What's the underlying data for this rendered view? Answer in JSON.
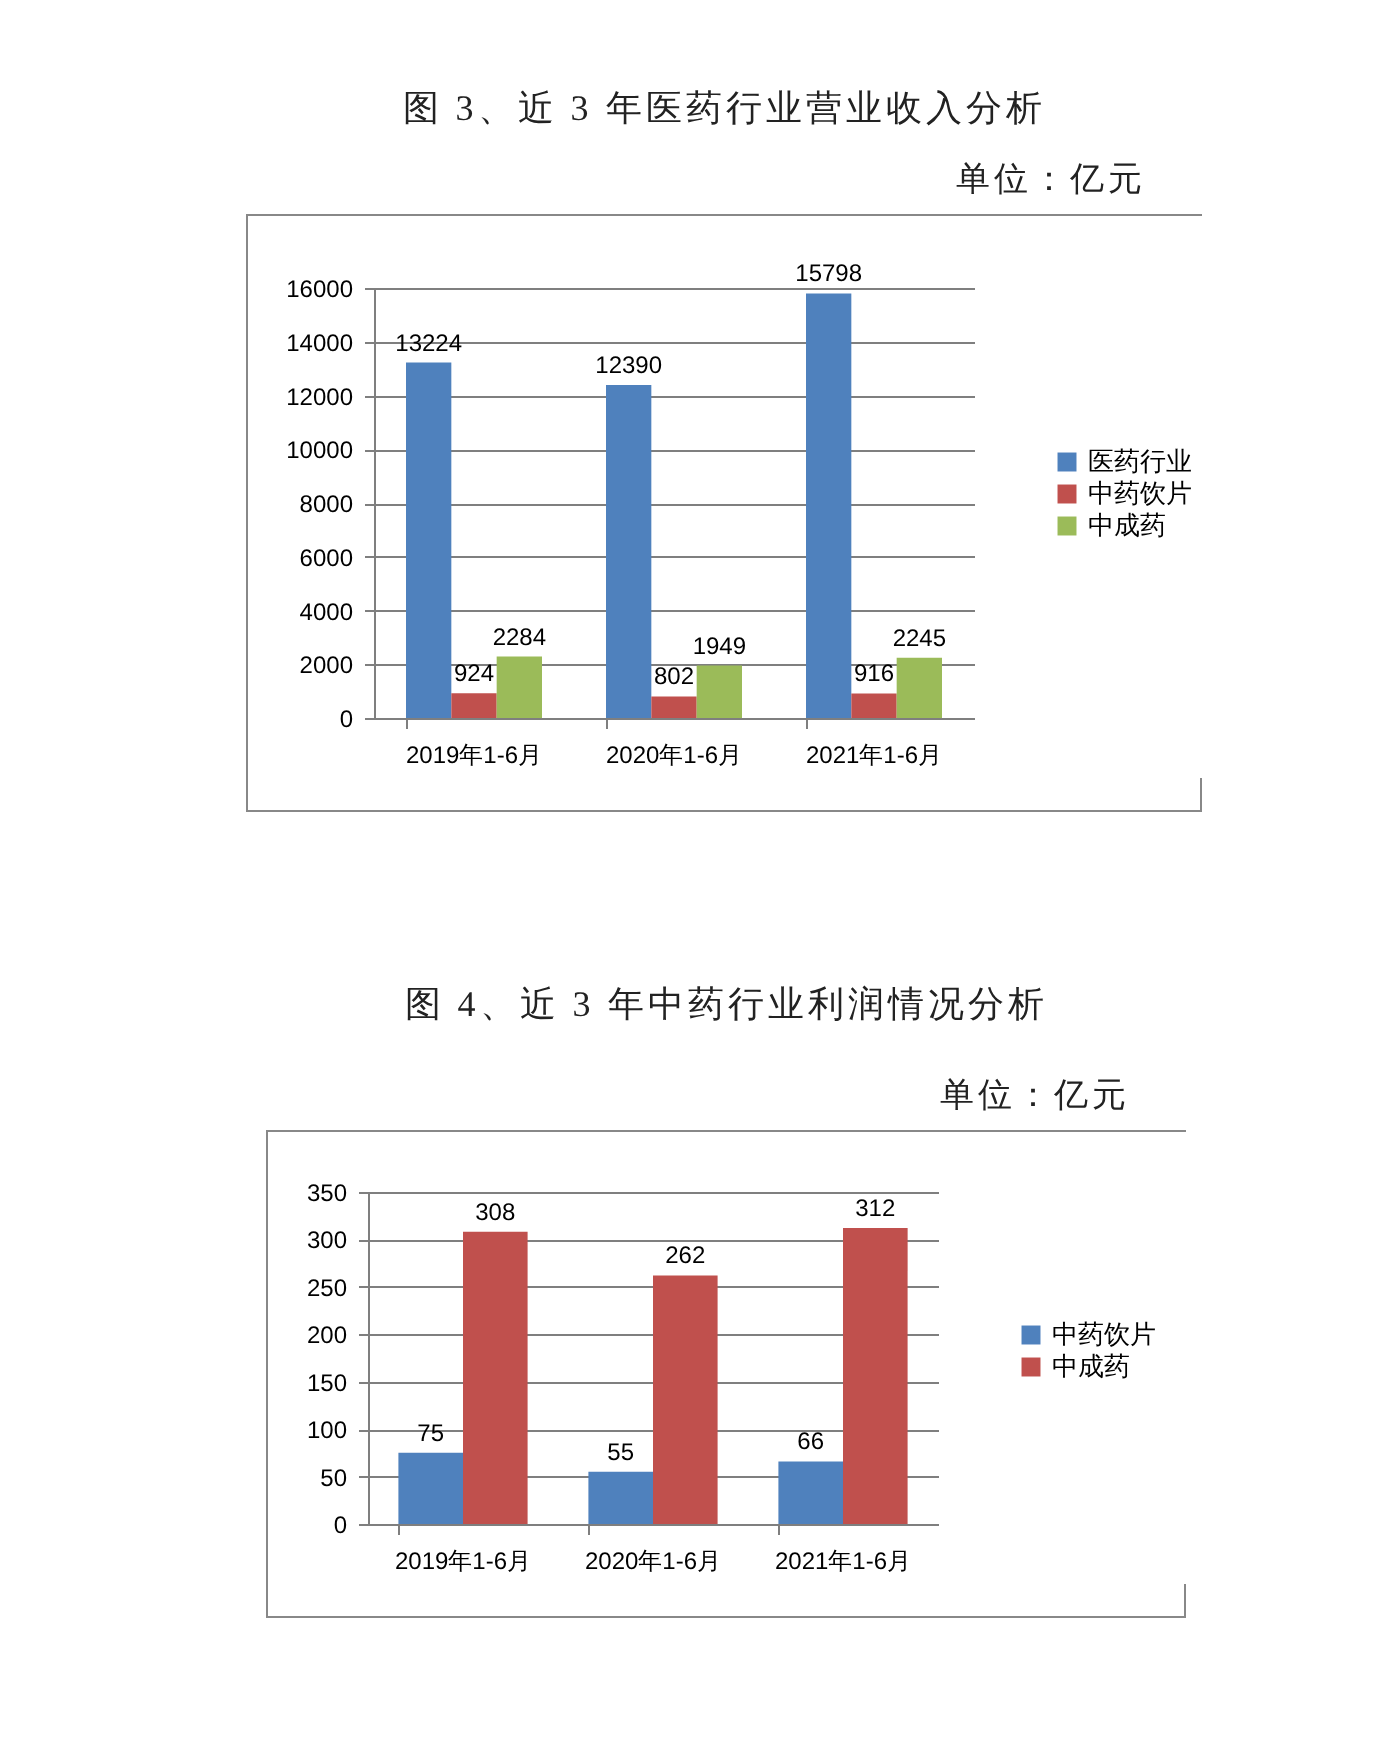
{
  "chart_data": [
    {
      "type": "bar",
      "title": "图 3、近 3 年医药行业营业收入分析",
      "subtitle": "单位：亿元",
      "categories": [
        "2019年1-6月",
        "2020年1-6月",
        "2021年1-6月"
      ],
      "series": [
        {
          "name": "医药行业",
          "color": "#4f81bd",
          "values": [
            13224,
            12390,
            15798
          ]
        },
        {
          "name": "中药饮片",
          "color": "#c0504d",
          "values": [
            924,
            802,
            916
          ]
        },
        {
          "name": "中成药",
          "color": "#9bbb59",
          "values": [
            2284,
            1949,
            2245
          ]
        }
      ],
      "ylim": [
        0,
        16000
      ],
      "yticks": [
        0,
        2000,
        4000,
        6000,
        8000,
        10000,
        12000,
        14000,
        16000
      ],
      "grid": "y",
      "legend": "right",
      "data_labels": true
    },
    {
      "type": "bar",
      "title": "图 4、近 3 年中药行业利润情况分析",
      "subtitle": "单位：亿元",
      "categories": [
        "2019年1-6月",
        "2020年1-6月",
        "2021年1-6月"
      ],
      "series": [
        {
          "name": "中药饮片",
          "color": "#4f81bd",
          "values": [
            75,
            55,
            66
          ]
        },
        {
          "name": "中成药",
          "color": "#c0504d",
          "values": [
            308,
            262,
            312
          ]
        }
      ],
      "ylim": [
        0,
        350
      ],
      "yticks": [
        0,
        50,
        100,
        150,
        200,
        250,
        300,
        350
      ],
      "grid": "y",
      "legend": "right",
      "data_labels": true
    }
  ]
}
